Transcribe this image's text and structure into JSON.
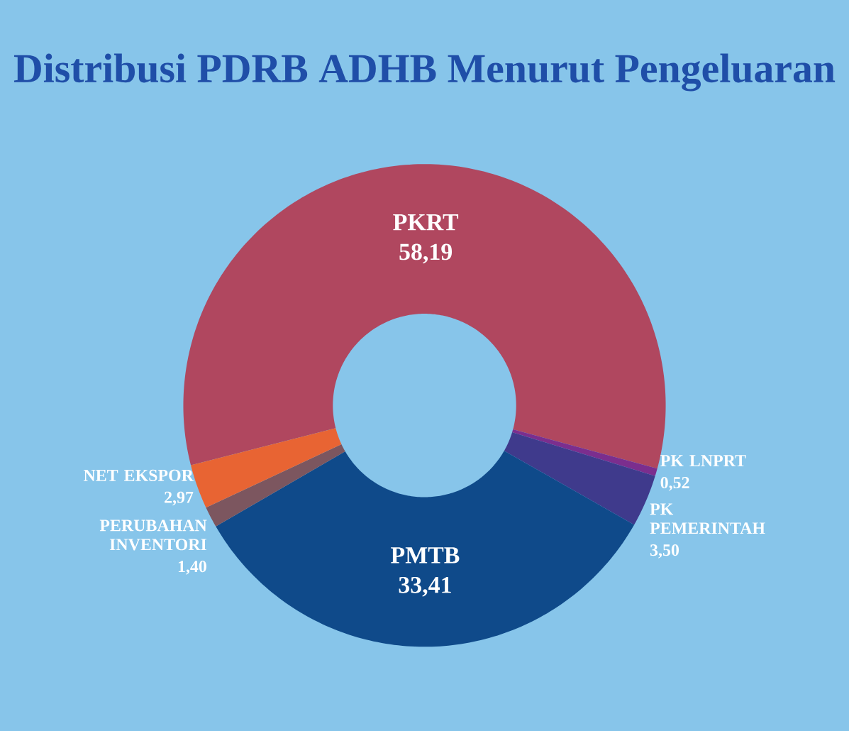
{
  "chart_data": {
    "type": "donut",
    "title": "Distribusi PDRB ADHB Menurut Pengeluaran",
    "categories": [
      "PKRT",
      "PK LNPRT",
      "PK PEMERINTAH",
      "PMTB",
      "PERUBAHAN INVENTORI",
      "NET EKSPOR"
    ],
    "values": [
      58.19,
      0.52,
      3.5,
      33.41,
      1.4,
      2.97
    ],
    "value_labels": [
      "58,19",
      "0,52",
      "3,50",
      "33,41",
      "1,40",
      "2,97"
    ],
    "colors": [
      "#b0475f",
      "#7b2e8e",
      "#3f3a8c",
      "#0f4a8a",
      "#7c565f",
      "#e86433"
    ]
  }
}
